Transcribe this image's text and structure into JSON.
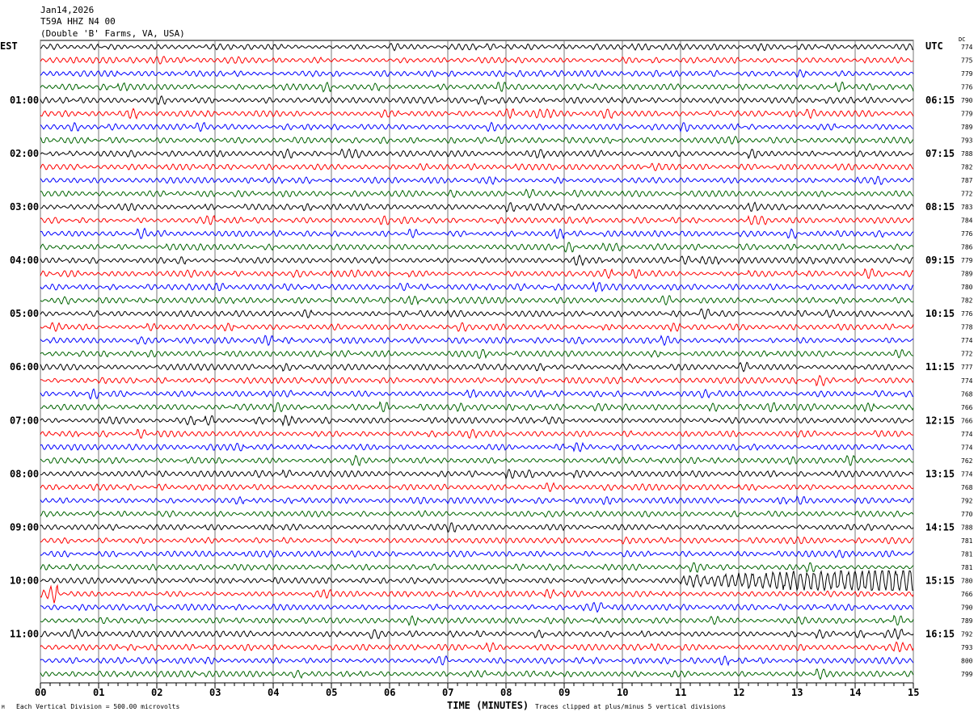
{
  "header": {
    "date": "Jan14,2026",
    "station": "T59A HHZ N4 00",
    "location": "(Double 'B' Farms, VA, USA)"
  },
  "left_zone": "EST",
  "right_zone": "UTC",
  "dc_label": "DC",
  "footer": {
    "scale": "Each Vertical Division =  500.00 microvolts",
    "xlabel": "TIME (MINUTES)",
    "clip_note": "Traces clipped at plus/minus 5 vertical divisions",
    "corner_mark": "M"
  },
  "chart_data": {
    "type": "line",
    "title": "T59A HHZ N4 00 helicorder",
    "xlabel": "TIME (MINUTES)",
    "xlim": [
      0,
      15
    ],
    "x_ticks": [
      "00",
      "01",
      "02",
      "03",
      "04",
      "05",
      "06",
      "07",
      "08",
      "09",
      "10",
      "11",
      "12",
      "13",
      "14",
      "15"
    ],
    "trace_colors": [
      "#000000",
      "#ff0000",
      "#0000ff",
      "#006400"
    ],
    "left_hour_labels": [
      {
        "trace": 4,
        "label": "01:00"
      },
      {
        "trace": 8,
        "label": "02:00"
      },
      {
        "trace": 12,
        "label": "03:00"
      },
      {
        "trace": 16,
        "label": "04:00"
      },
      {
        "trace": 20,
        "label": "05:00"
      },
      {
        "trace": 24,
        "label": "06:00"
      },
      {
        "trace": 28,
        "label": "07:00"
      },
      {
        "trace": 32,
        "label": "08:00"
      },
      {
        "trace": 36,
        "label": "09:00"
      },
      {
        "trace": 40,
        "label": "10:00"
      },
      {
        "trace": 44,
        "label": "11:00"
      }
    ],
    "right_hour_labels": [
      {
        "trace": 4,
        "label": "06:15"
      },
      {
        "trace": 8,
        "label": "07:15"
      },
      {
        "trace": 12,
        "label": "08:15"
      },
      {
        "trace": 16,
        "label": "09:15"
      },
      {
        "trace": 20,
        "label": "10:15"
      },
      {
        "trace": 24,
        "label": "11:15"
      },
      {
        "trace": 28,
        "label": "12:15"
      },
      {
        "trace": 32,
        "label": "13:15"
      },
      {
        "trace": 36,
        "label": "14:15"
      },
      {
        "trace": 40,
        "label": "15:15"
      },
      {
        "trace": 44,
        "label": "16:15"
      }
    ],
    "dc_offsets": [
      "774",
      "775",
      "779",
      "776",
      "790",
      "779",
      "789",
      "793",
      "788",
      "782",
      "787",
      "772",
      "783",
      "784",
      "776",
      "786",
      "779",
      "789",
      "780",
      "782",
      "776",
      "778",
      "774",
      "772",
      "777",
      "774",
      "768",
      "766",
      "766",
      "774",
      "774",
      "762",
      "774",
      "768",
      "792",
      "770",
      "788",
      "781",
      "781",
      "781",
      "780",
      "766",
      "790",
      "789",
      "792",
      "793",
      "800",
      "799"
    ],
    "events": [
      {
        "trace": 40,
        "start_min": 11.0,
        "end_min": 15.0,
        "amplitude": 1.0
      },
      {
        "trace": 41,
        "start_min": 0.0,
        "end_min": 0.3,
        "amplitude": 0.6
      }
    ]
  }
}
